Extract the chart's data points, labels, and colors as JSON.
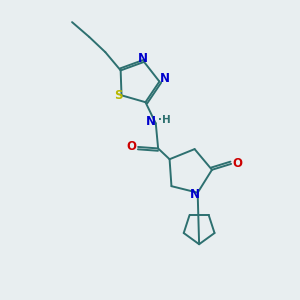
{
  "bg_color": "#e8eef0",
  "bond_color": "#2d7070",
  "bond_width": 1.4,
  "atom_colors": {
    "N": "#0000cc",
    "S": "#b8b800",
    "O": "#cc0000",
    "C": "#2d7070"
  },
  "font_size": 8.5
}
